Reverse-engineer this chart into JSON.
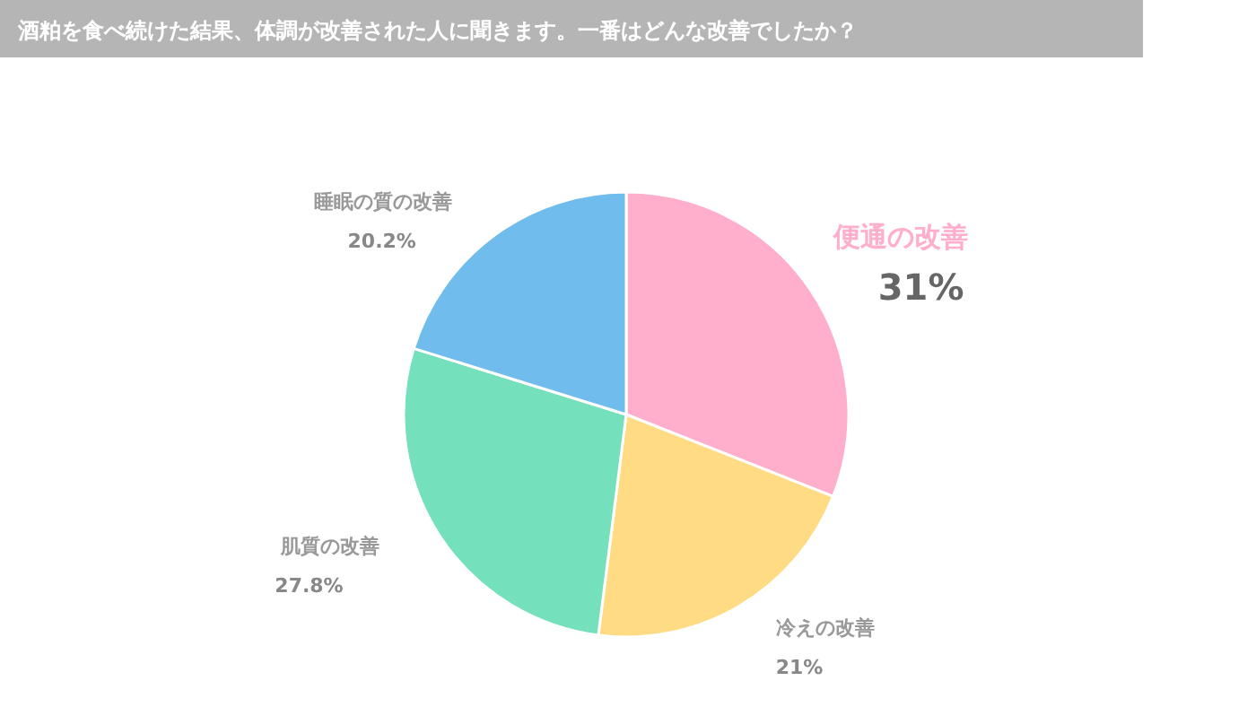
{
  "chart_data": {
    "type": "pie",
    "title": "酒粕を食べ続けた結果、体調が改善された人に聞きます。一番はどんな改善でしたか？",
    "categories": [
      "便通の改善",
      "冷えの改善",
      "肌質の改善",
      "睡眠の質の改善"
    ],
    "values": [
      31,
      21,
      27.8,
      20.2
    ],
    "value_labels": [
      "31%",
      "21%",
      "27.8%",
      "20.2%"
    ],
    "colors": [
      "#ffaecb",
      "#ffdc84",
      "#74e0bc",
      "#70bcec"
    ],
    "legend": false
  }
}
